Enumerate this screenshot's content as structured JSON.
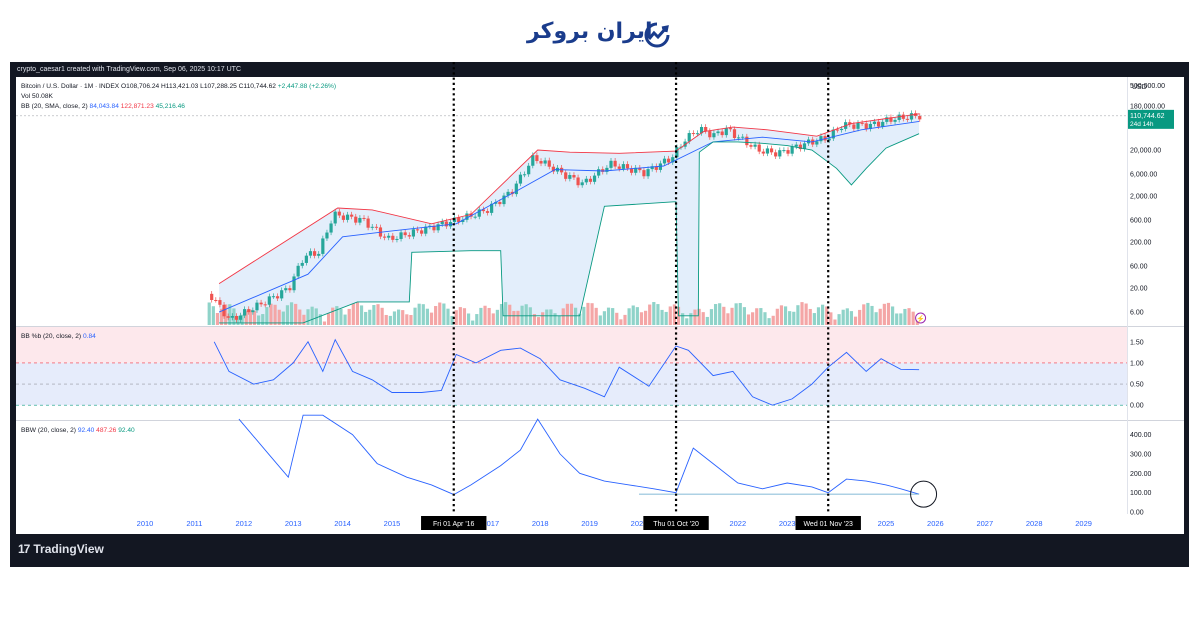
{
  "brand": {
    "name": "ایران بروکر",
    "accent": "#1a3c8c"
  },
  "caption": "crypto_caesar1 created with TradingView.com, Sep 06, 2025 10:17 UTC",
  "footer": {
    "logo_text": "TradingView",
    "logo_mark": "17"
  },
  "colors": {
    "up": "#26a69a",
    "down": "#ef5350",
    "bb_upper": "#f23645",
    "bb_basis": "#2962ff",
    "bb_lower": "#089981",
    "bb_fill": "#e3eefb",
    "band_upper_fill": "#fde8ec",
    "band_lower_fill": "#e6ecfb",
    "price_label_bg": "#089981"
  },
  "legend": {
    "symbol": "Bitcoin / U.S. Dollar · 1M · INDEX",
    "open": "O108,706.24",
    "high": "H113,421.03",
    "low": "L107,288.25",
    "close": "C110,744.62",
    "change": "+2,447.88 (+2.26%)",
    "vol_label": "Vol",
    "vol_value": "50.08K",
    "bb_label": "BB (20, SMA, close, 2)",
    "bb_basis": "84,043.84",
    "bb_upper": "122,871.23",
    "bb_lower": "45,216.46",
    "pctb_label": "BB %b (20, close, 2)",
    "pctb_value": "0.84",
    "bbw_label": "BBW (20, close, 2)",
    "bbw_value1": "92.40",
    "bbw_value2": "487.26",
    "bbw_value3": "92.40"
  },
  "price_label": {
    "value": "110,744.62",
    "countdown": "24d 14h",
    "currency": "USD"
  },
  "markers": [
    {
      "label": "Fri 01 Apr '16",
      "year": 2016.25
    },
    {
      "label": "Thu 01 Oct '20",
      "year": 2020.75
    },
    {
      "label": "Wed 01 Nov '23",
      "year": 2023.83
    }
  ],
  "chart_data": [
    {
      "type": "line",
      "title": "Bitcoin / U.S. Dollar · 1M · INDEX",
      "scale": "log",
      "y_ticks": [
        "500,000.00",
        "180,000.00",
        "20,000.00",
        "6,000.00",
        "2,000.00",
        "600.00",
        "200.00",
        "60.00",
        "20.00",
        "6.00"
      ],
      "x_ticks": [
        "2010",
        "2011",
        "2012",
        "2013",
        "2014",
        "2015",
        "2016",
        "2017",
        "2018",
        "2019",
        "2020",
        "2021",
        "2022",
        "2023",
        "2024",
        "2025",
        "2026",
        "2027",
        "2028",
        "2029"
      ],
      "series": [
        {
          "name": "Bitcoin / U.S. Dollar",
          "x": [
            2011.4,
            2011.8,
            2012.5,
            2013.0,
            2013.3,
            2013.6,
            2013.9,
            2014.5,
            2015.0,
            2015.8,
            2016.5,
            2017.0,
            2017.5,
            2017.95,
            2018.5,
            2018.95,
            2019.5,
            2020.2,
            2020.75,
            2021.0,
            2021.3,
            2021.6,
            2021.85,
            2022.5,
            2022.9,
            2023.5,
            2023.9,
            2024.2,
            2024.8,
            2025.2,
            2025.67
          ],
          "y": [
            15,
            4,
            10,
            20,
            100,
            120,
            800,
            600,
            230,
            400,
            650,
            1000,
            2500,
            14000,
            6500,
            3700,
            10000,
            6500,
            13800,
            33000,
            58000,
            42000,
            57000,
            20000,
            17000,
            29000,
            37000,
            70000,
            70000,
            95000,
            110744
          ]
        },
        {
          "name": "BB upper",
          "x": [
            2011.5,
            2013.9,
            2014.6,
            2015.8,
            2016.6,
            2017.95,
            2018.6,
            2019.6,
            2020.75,
            2021.3,
            2021.9,
            2022.6,
            2023.6,
            2024.3,
            2025.67
          ],
          "y": [
            25,
            1100,
            1000,
            500,
            800,
            20000,
            18000,
            17000,
            19000,
            50000,
            63000,
            55000,
            40000,
            75000,
            122871
          ]
        },
        {
          "name": "BB basis",
          "x": [
            2011.5,
            2013.3,
            2014.0,
            2015.0,
            2016.3,
            2017.5,
            2018.3,
            2019.3,
            2020.5,
            2021.5,
            2022.5,
            2023.5,
            2024.5,
            2025.67
          ],
          "y": [
            6,
            40,
            260,
            350,
            500,
            2500,
            7500,
            7000,
            9000,
            30000,
            38000,
            30000,
            55000,
            84043
          ]
        }
      ]
    },
    {
      "type": "line",
      "title": "BB %b (20, close, 2)",
      "y_ticks": [
        "1.50",
        "1.00",
        "0.50",
        "0.00"
      ],
      "series": [
        {
          "name": "BB %b",
          "x": [
            2011.4,
            2011.7,
            2012.2,
            2012.6,
            2013.0,
            2013.3,
            2013.6,
            2013.85,
            2014.2,
            2014.6,
            2015.0,
            2015.6,
            2016.0,
            2016.3,
            2016.7,
            2017.2,
            2017.6,
            2018.0,
            2018.4,
            2018.9,
            2019.3,
            2019.6,
            2020.2,
            2020.75,
            2021.0,
            2021.5,
            2021.9,
            2022.3,
            2022.7,
            2023.1,
            2023.5,
            2023.83,
            2024.2,
            2024.6,
            2024.9,
            2025.3,
            2025.67
          ],
          "y": [
            1.5,
            0.8,
            0.5,
            0.6,
            1.0,
            1.5,
            0.8,
            1.55,
            0.8,
            0.6,
            0.3,
            0.3,
            0.35,
            1.2,
            1.0,
            1.3,
            1.35,
            1.1,
            0.6,
            0.4,
            0.2,
            0.9,
            0.45,
            1.4,
            1.3,
            0.7,
            0.8,
            0.2,
            0.0,
            0.15,
            0.5,
            0.9,
            1.25,
            0.8,
            1.1,
            0.85,
            0.84
          ]
        }
      ]
    },
    {
      "type": "line",
      "title": "BBW (20, close, 2)",
      "y_ticks": [
        "400.00",
        "300.00",
        "200.00",
        "100.00",
        "0.00"
      ],
      "series": [
        {
          "name": "BBW",
          "x": [
            2011.9,
            2012.5,
            2012.9,
            2013.2,
            2013.6,
            2014.2,
            2014.7,
            2015.3,
            2015.8,
            2016.25,
            2016.6,
            2017.2,
            2017.6,
            2017.95,
            2018.4,
            2018.8,
            2019.3,
            2019.8,
            2020.3,
            2020.75,
            2021.1,
            2021.5,
            2022.0,
            2022.5,
            2023.0,
            2023.5,
            2023.83,
            2024.2,
            2024.6,
            2025.0,
            2025.3,
            2025.67
          ],
          "y": [
            480,
            300,
            180,
            500,
            500,
            400,
            250,
            180,
            140,
            90,
            140,
            240,
            320,
            480,
            300,
            200,
            160,
            140,
            120,
            100,
            330,
            250,
            150,
            120,
            150,
            130,
            100,
            170,
            160,
            140,
            120,
            92.4
          ]
        }
      ]
    }
  ]
}
